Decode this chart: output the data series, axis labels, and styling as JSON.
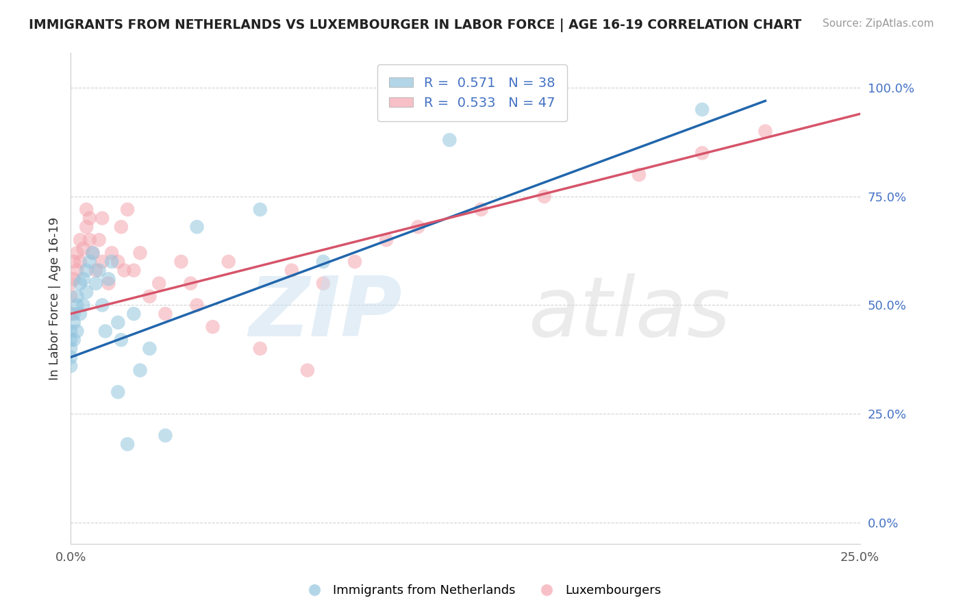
{
  "title": "IMMIGRANTS FROM NETHERLANDS VS LUXEMBOURGER IN LABOR FORCE | AGE 16-19 CORRELATION CHART",
  "source": "Source: ZipAtlas.com",
  "ylabel": "In Labor Force | Age 16-19",
  "xlim": [
    0.0,
    0.25
  ],
  "ylim": [
    -0.05,
    1.08
  ],
  "blue_color": "#92c5de",
  "pink_color": "#f4a6b0",
  "blue_line_color": "#2166ac",
  "pink_line_color": "#d6546a",
  "blue_r": 0.571,
  "blue_n": 38,
  "pink_r": 0.533,
  "pink_n": 47,
  "watermark_zip": "ZIP",
  "watermark_atlas": "atlas",
  "background_color": "#ffffff",
  "grid_color": "#cccccc",
  "blue_x": [
    0.0,
    0.0,
    0.0,
    0.0,
    0.0,
    0.001,
    0.001,
    0.001,
    0.002,
    0.002,
    0.002,
    0.003,
    0.003,
    0.004,
    0.004,
    0.005,
    0.005,
    0.006,
    0.007,
    0.008,
    0.009,
    0.01,
    0.011,
    0.012,
    0.013,
    0.015,
    0.015,
    0.016,
    0.018,
    0.02,
    0.022,
    0.025,
    0.03,
    0.04,
    0.06,
    0.08,
    0.12,
    0.2
  ],
  "blue_y": [
    0.4,
    0.42,
    0.38,
    0.36,
    0.44,
    0.46,
    0.42,
    0.48,
    0.5,
    0.44,
    0.52,
    0.48,
    0.55,
    0.5,
    0.56,
    0.58,
    0.53,
    0.6,
    0.62,
    0.55,
    0.58,
    0.5,
    0.44,
    0.56,
    0.6,
    0.46,
    0.3,
    0.42,
    0.18,
    0.48,
    0.35,
    0.4,
    0.2,
    0.68,
    0.72,
    0.6,
    0.88,
    0.95
  ],
  "pink_x": [
    0.0,
    0.0,
    0.0,
    0.001,
    0.001,
    0.002,
    0.002,
    0.003,
    0.003,
    0.004,
    0.005,
    0.005,
    0.006,
    0.006,
    0.007,
    0.008,
    0.009,
    0.01,
    0.01,
    0.012,
    0.013,
    0.015,
    0.016,
    0.017,
    0.018,
    0.02,
    0.022,
    0.025,
    0.028,
    0.03,
    0.035,
    0.038,
    0.04,
    0.045,
    0.05,
    0.06,
    0.07,
    0.075,
    0.08,
    0.09,
    0.1,
    0.11,
    0.13,
    0.15,
    0.18,
    0.2,
    0.22
  ],
  "pink_y": [
    0.52,
    0.55,
    0.48,
    0.56,
    0.6,
    0.58,
    0.62,
    0.6,
    0.65,
    0.63,
    0.68,
    0.72,
    0.65,
    0.7,
    0.62,
    0.58,
    0.65,
    0.6,
    0.7,
    0.55,
    0.62,
    0.6,
    0.68,
    0.58,
    0.72,
    0.58,
    0.62,
    0.52,
    0.55,
    0.48,
    0.6,
    0.55,
    0.5,
    0.45,
    0.6,
    0.4,
    0.58,
    0.35,
    0.55,
    0.6,
    0.65,
    0.68,
    0.72,
    0.75,
    0.8,
    0.85,
    0.9
  ]
}
